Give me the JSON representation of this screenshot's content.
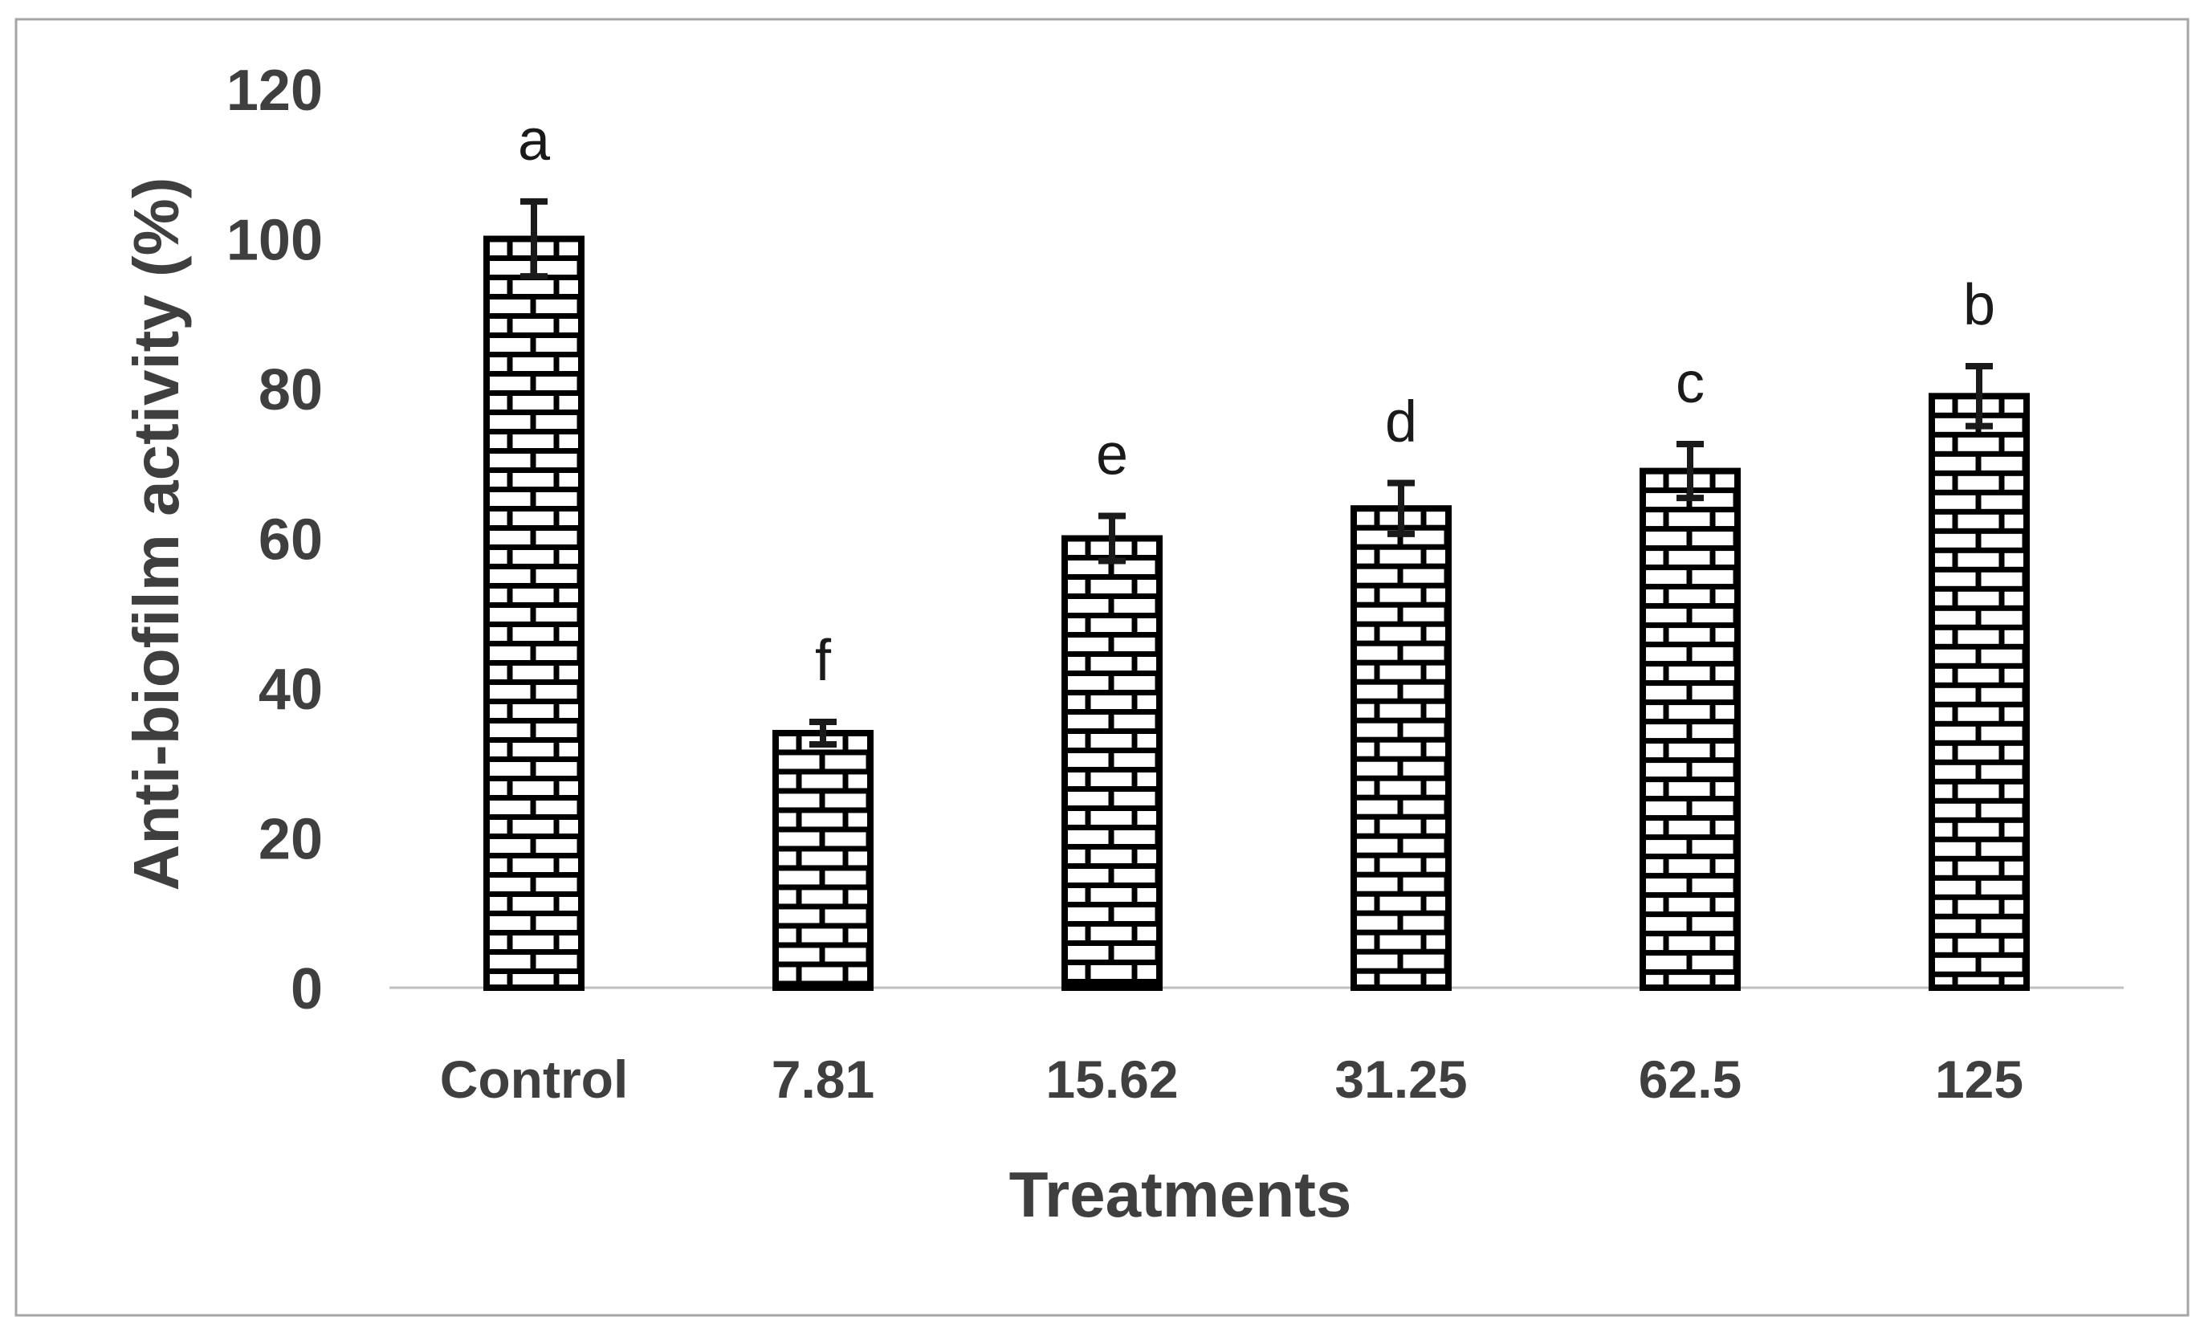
{
  "figure": {
    "background": "#ffffff",
    "border_color": "#a6a6a6"
  },
  "chart_data": {
    "type": "bar",
    "title": "",
    "xlabel": "Treatments",
    "ylabel": "Anti-biofilm activity (%)",
    "categories": [
      "Control",
      "7.81",
      "15.62",
      "31.25",
      "62.5",
      "125"
    ],
    "values": [
      100,
      34,
      60,
      64,
      69,
      79
    ],
    "error_bars": [
      5,
      1.5,
      3,
      3.4,
      3.6,
      4
    ],
    "significance_letters": [
      "a",
      "f",
      "e",
      "d",
      "c",
      "b"
    ],
    "ylim": [
      0,
      120
    ],
    "yticks": [
      0,
      20,
      40,
      60,
      80,
      100,
      120
    ],
    "grid": false,
    "legend": "none",
    "bar_style": "white-brick-pattern",
    "colors": {
      "bar_fill": "#ffffff",
      "bar_pattern_line": "#000000",
      "bar_border": "#000000",
      "error_bar": "#1a1a1a",
      "tick_text": "#3f3f3f",
      "axis_title_text": "#3f3f3f",
      "letter_text": "#1a1a1a",
      "baseline": "#bfbfbf"
    }
  }
}
